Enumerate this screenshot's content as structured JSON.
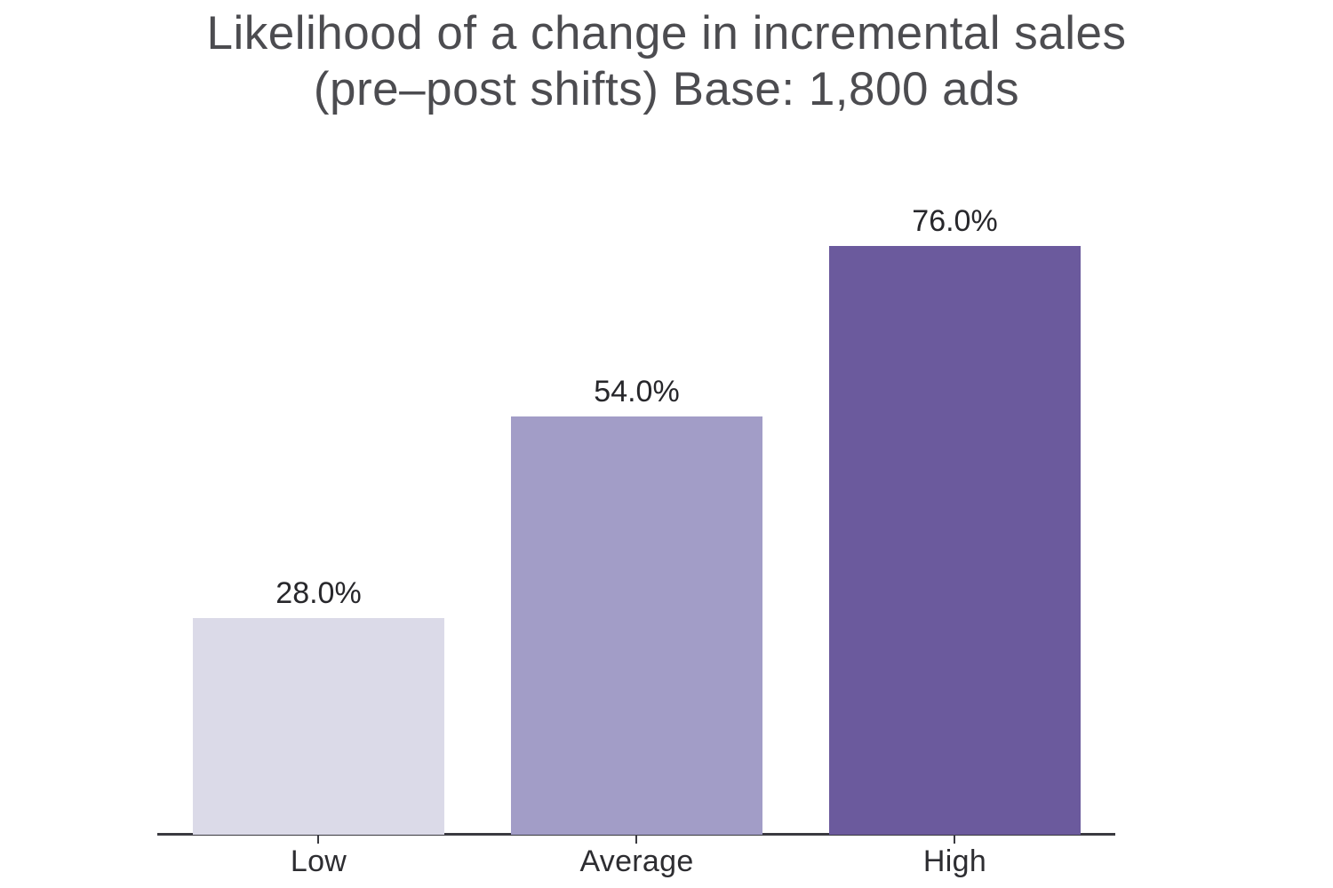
{
  "chart": {
    "title_line1": "Likelihood of a change in incremental sales",
    "title_line2": "(pre–post shifts) Base: 1,800 ads"
  },
  "chart_data": {
    "type": "bar",
    "title": "Likelihood of a change in incremental sales (pre–post shifts) Base: 1,800 ads",
    "categories": [
      "Low",
      "Average",
      "High"
    ],
    "values": [
      28.0,
      54.0,
      76.0
    ],
    "value_labels": [
      "28.0%",
      "54.0%",
      "76.0%"
    ],
    "xlabel": "",
    "ylabel": "",
    "ylim": [
      0,
      80
    ],
    "grid": false,
    "legend": false,
    "bar_colors": [
      "#dbdae8",
      "#a29dc7",
      "#6b5a9d"
    ],
    "value_label_color": "#27272b",
    "category_label_color": "#2d2d31",
    "axis_color": "#3a3a40",
    "title_color": "#4c4c50",
    "background_color": "#ffffff"
  }
}
